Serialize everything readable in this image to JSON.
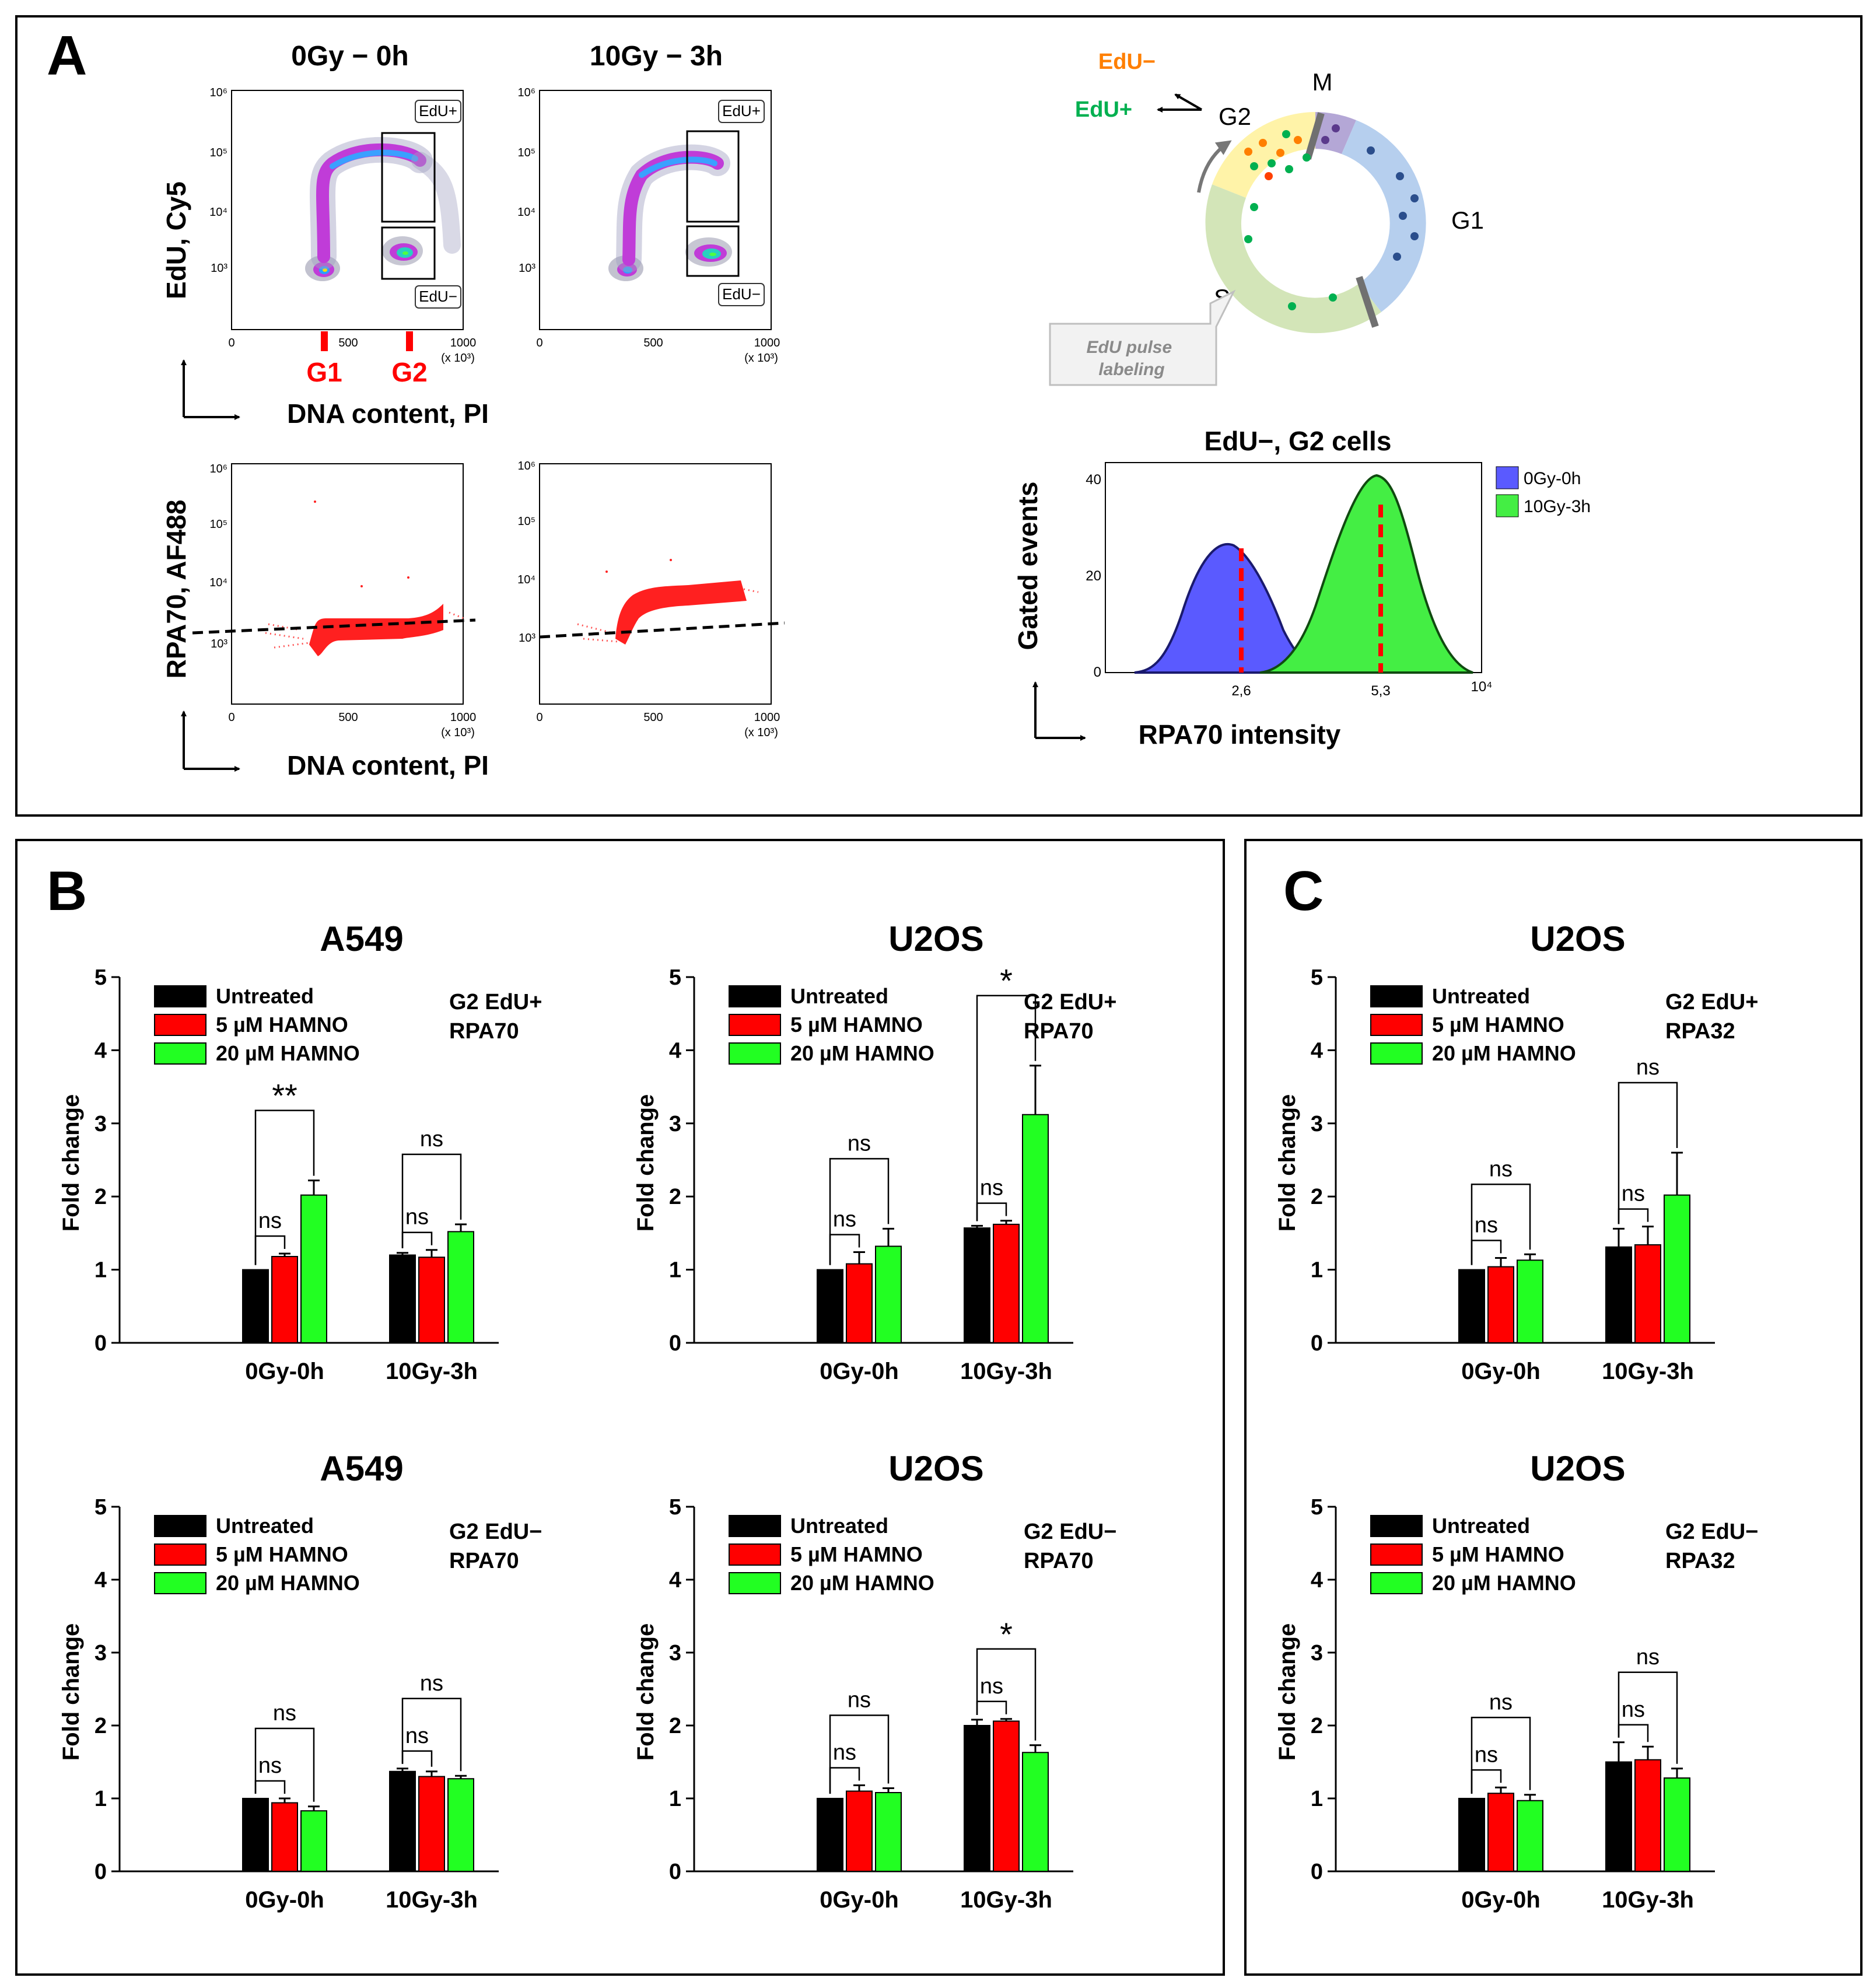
{
  "figure_panels": {
    "A": {
      "label": "A",
      "flow": {
        "col_titles": [
          "0Gy − 0h",
          "10Gy − 3h"
        ],
        "top_ylabel": "EdU, Cy5",
        "bottom_ylabel": "RPA70, AF488",
        "xlabel": "DNA content, PI",
        "y_ticks": [
          "10³",
          "10⁴",
          "10⁵",
          "10⁶"
        ],
        "x_ticks": [
          "0",
          "500",
          "1000"
        ],
        "x_multiplier": "(x 10³)",
        "gate_upper": "EdU+",
        "gate_lower": "EdU−",
        "g1_marker": "G1",
        "g2_marker": "G2"
      },
      "cycle": {
        "phases": [
          "M",
          "G1",
          "S",
          "G2"
        ],
        "arrow_up": "EdU−",
        "arrow_right": "EdU+",
        "callout": "EdU pulse labeling"
      },
      "histogram": {
        "title": "EdU−, G2 cells",
        "ylabel": "Gated events",
        "xlabel": "RPA70 intensity",
        "y_ticks": [
          "0",
          "20",
          "40"
        ],
        "x_ticks": [
          "2,6",
          "5,3",
          "10⁴"
        ],
        "legend": [
          "0Gy-0h",
          "10Gy-3h"
        ],
        "colors": [
          "#5a5aff",
          "#44ee44"
        ]
      }
    },
    "B": {
      "label": "B"
    },
    "C": {
      "label": "C"
    }
  },
  "chart_data": [
    {
      "type": "bar",
      "panel": "B",
      "title": "A549",
      "annotation": [
        "G2 EdU+",
        "RPA70"
      ],
      "ylabel": "Fold change",
      "ylim": [
        0,
        5
      ],
      "yticks": [
        0,
        1,
        2,
        3,
        4,
        5
      ],
      "categories": [
        "0Gy-0h",
        "10Gy-3h"
      ],
      "series": [
        {
          "name": "Untreated",
          "color": "#000000",
          "values": [
            1.0,
            1.2
          ],
          "errors": [
            0,
            0.03
          ]
        },
        {
          "name": "5 µM HAMNO",
          "color": "#ff0000",
          "values": [
            1.18,
            1.17
          ],
          "errors": [
            0.04,
            0.1
          ]
        },
        {
          "name": "20 µM HAMNO",
          "color": "#22ff22",
          "values": [
            2.02,
            1.52
          ],
          "errors": [
            0.2,
            0.1
          ]
        }
      ],
      "significance": [
        {
          "category": 0,
          "pair": "untreated-vs-5uM",
          "label": "ns"
        },
        {
          "category": 0,
          "pair": "untreated-vs-20uM",
          "label": "**"
        },
        {
          "category": 1,
          "pair": "untreated-vs-5uM",
          "label": "ns"
        },
        {
          "category": 1,
          "pair": "untreated-vs-20uM",
          "label": "ns"
        }
      ]
    },
    {
      "type": "bar",
      "panel": "B",
      "title": "U2OS",
      "annotation": [
        "G2 EdU+",
        "RPA70"
      ],
      "ylabel": "Fold change",
      "ylim": [
        0,
        5
      ],
      "yticks": [
        0,
        1,
        2,
        3,
        4,
        5
      ],
      "categories": [
        "0Gy-0h",
        "10Gy-3h"
      ],
      "series": [
        {
          "name": "Untreated",
          "color": "#000000",
          "values": [
            1.0,
            1.57
          ],
          "errors": [
            0,
            0.03
          ]
        },
        {
          "name": "5 µM HAMNO",
          "color": "#ff0000",
          "values": [
            1.08,
            1.62
          ],
          "errors": [
            0.16,
            0.05
          ]
        },
        {
          "name": "20 µM HAMNO",
          "color": "#22ff22",
          "values": [
            1.32,
            3.12
          ],
          "errors": [
            0.24,
            0.67
          ]
        }
      ],
      "significance": [
        {
          "category": 0,
          "pair": "untreated-vs-5uM",
          "label": "ns"
        },
        {
          "category": 0,
          "pair": "untreated-vs-20uM",
          "label": "ns"
        },
        {
          "category": 1,
          "pair": "untreated-vs-5uM",
          "label": "ns"
        },
        {
          "category": 1,
          "pair": "untreated-vs-20uM",
          "label": "*"
        }
      ]
    },
    {
      "type": "bar",
      "panel": "C",
      "title": "U2OS",
      "annotation": [
        "G2 EdU+",
        "RPA32"
      ],
      "ylabel": "Fold change",
      "ylim": [
        0,
        5
      ],
      "yticks": [
        0,
        1,
        2,
        3,
        4,
        5
      ],
      "categories": [
        "0Gy-0h",
        "10Gy-3h"
      ],
      "series": [
        {
          "name": "Untreated",
          "color": "#000000",
          "values": [
            1.0,
            1.31
          ],
          "errors": [
            0,
            0.25
          ]
        },
        {
          "name": "5 µM HAMNO",
          "color": "#ff0000",
          "values": [
            1.04,
            1.34
          ],
          "errors": [
            0.12,
            0.25
          ]
        },
        {
          "name": "20 µM HAMNO",
          "color": "#22ff22",
          "values": [
            1.13,
            2.02
          ],
          "errors": [
            0.08,
            0.58
          ]
        }
      ],
      "significance": [
        {
          "category": 0,
          "pair": "untreated-vs-5uM",
          "label": "ns"
        },
        {
          "category": 0,
          "pair": "untreated-vs-20uM",
          "label": "ns"
        },
        {
          "category": 1,
          "pair": "untreated-vs-5uM",
          "label": "ns"
        },
        {
          "category": 1,
          "pair": "untreated-vs-20uM",
          "label": "ns"
        }
      ]
    },
    {
      "type": "bar",
      "panel": "B",
      "title": "A549",
      "annotation": [
        "G2 EdU−",
        "RPA70"
      ],
      "ylabel": "Fold change",
      "ylim": [
        0,
        5
      ],
      "yticks": [
        0,
        1,
        2,
        3,
        4,
        5
      ],
      "categories": [
        "0Gy-0h",
        "10Gy-3h"
      ],
      "series": [
        {
          "name": "Untreated",
          "color": "#000000",
          "values": [
            1.0,
            1.37
          ],
          "errors": [
            0,
            0.04
          ]
        },
        {
          "name": "5 µM HAMNO",
          "color": "#ff0000",
          "values": [
            0.94,
            1.3
          ],
          "errors": [
            0.06,
            0.07
          ]
        },
        {
          "name": "20 µM HAMNO",
          "color": "#22ff22",
          "values": [
            0.83,
            1.27
          ],
          "errors": [
            0.06,
            0.04
          ]
        }
      ],
      "significance": [
        {
          "category": 0,
          "pair": "untreated-vs-5uM",
          "label": "ns"
        },
        {
          "category": 0,
          "pair": "untreated-vs-20uM",
          "label": "ns"
        },
        {
          "category": 1,
          "pair": "untreated-vs-5uM",
          "label": "ns"
        },
        {
          "category": 1,
          "pair": "untreated-vs-20uM",
          "label": "ns"
        }
      ]
    },
    {
      "type": "bar",
      "panel": "B",
      "title": "U2OS",
      "annotation": [
        "G2 EdU−",
        "RPA70"
      ],
      "ylabel": "Fold change",
      "ylim": [
        0,
        5
      ],
      "yticks": [
        0,
        1,
        2,
        3,
        4,
        5
      ],
      "categories": [
        "0Gy-0h",
        "10Gy-3h"
      ],
      "series": [
        {
          "name": "Untreated",
          "color": "#000000",
          "values": [
            1.0,
            2.0
          ],
          "errors": [
            0,
            0.08
          ]
        },
        {
          "name": "5 µM HAMNO",
          "color": "#ff0000",
          "values": [
            1.1,
            2.06
          ],
          "errors": [
            0.08,
            0.03
          ]
        },
        {
          "name": "20 µM HAMNO",
          "color": "#22ff22",
          "values": [
            1.08,
            1.63
          ],
          "errors": [
            0.06,
            0.1
          ]
        }
      ],
      "significance": [
        {
          "category": 0,
          "pair": "untreated-vs-5uM",
          "label": "ns"
        },
        {
          "category": 0,
          "pair": "untreated-vs-20uM",
          "label": "ns"
        },
        {
          "category": 1,
          "pair": "untreated-vs-5uM",
          "label": "ns"
        },
        {
          "category": 1,
          "pair": "untreated-vs-20uM",
          "label": "*"
        }
      ]
    },
    {
      "type": "bar",
      "panel": "C",
      "title": "U2OS",
      "annotation": [
        "G2 EdU−",
        "RPA32"
      ],
      "ylabel": "Fold change",
      "ylim": [
        0,
        5
      ],
      "yticks": [
        0,
        1,
        2,
        3,
        4,
        5
      ],
      "categories": [
        "0Gy-0h",
        "10Gy-3h"
      ],
      "series": [
        {
          "name": "Untreated",
          "color": "#000000",
          "values": [
            1.0,
            1.5
          ],
          "errors": [
            0,
            0.27
          ]
        },
        {
          "name": "5 µM HAMNO",
          "color": "#ff0000",
          "values": [
            1.07,
            1.53
          ],
          "errors": [
            0.08,
            0.18
          ]
        },
        {
          "name": "20 µM HAMNO",
          "color": "#22ff22",
          "values": [
            0.97,
            1.28
          ],
          "errors": [
            0.08,
            0.13
          ]
        }
      ],
      "significance": [
        {
          "category": 0,
          "pair": "untreated-vs-5uM",
          "label": "ns"
        },
        {
          "category": 0,
          "pair": "untreated-vs-20uM",
          "label": "ns"
        },
        {
          "category": 1,
          "pair": "untreated-vs-5uM",
          "label": "ns"
        },
        {
          "category": 1,
          "pair": "untreated-vs-20uM",
          "label": "ns"
        }
      ]
    }
  ]
}
